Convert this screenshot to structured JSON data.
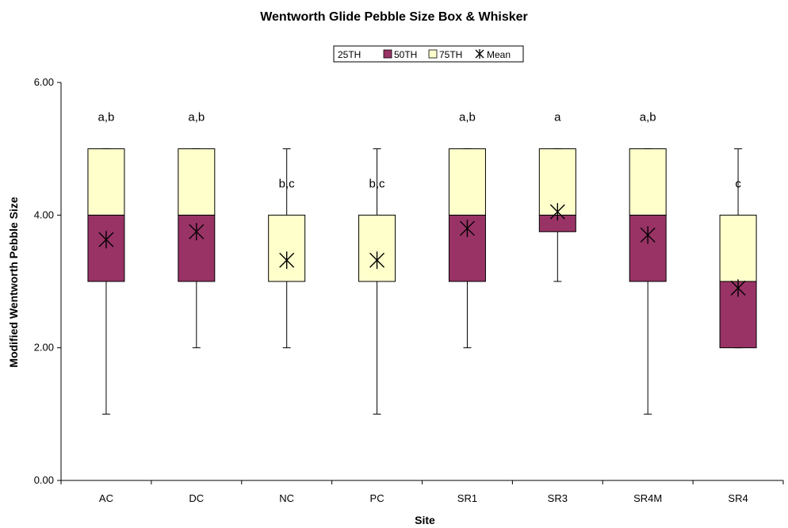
{
  "chart_data": {
    "type": "box",
    "title": "Wentworth Glide Pebble Size Box & Whisker",
    "xlabel": "Site",
    "ylabel": "Modified Wentworth Pebble Size",
    "ylim": [
      0,
      6
    ],
    "yticks": [
      "0.00",
      "2.00",
      "4.00",
      "6.00"
    ],
    "grid": false,
    "legend_position": "top-center",
    "legend": [
      {
        "name": "25TH",
        "color": "#ffffff"
      },
      {
        "name": "50TH",
        "color": "#993366"
      },
      {
        "name": "75TH",
        "color": "#ffffcc"
      },
      {
        "name": "Mean",
        "color": "#000000"
      }
    ],
    "categories": [
      "AC",
      "DC",
      "NC",
      "PC",
      "SR1",
      "SR3",
      "SR4M",
      "SR4"
    ],
    "boxes": [
      {
        "site": "AC",
        "min": 1,
        "q1": 3,
        "median": 4,
        "q3": 5,
        "max": 5,
        "mean": 3.63,
        "sig": "a,b"
      },
      {
        "site": "DC",
        "min": 2,
        "q1": 3,
        "median": 4,
        "q3": 5,
        "max": 5,
        "mean": 3.75,
        "sig": "a,b"
      },
      {
        "site": "NC",
        "min": 2,
        "q1": 3,
        "median": 3,
        "q3": 4,
        "max": 5,
        "mean": 3.32,
        "sig": "b,c"
      },
      {
        "site": "PC",
        "min": 1,
        "q1": 3,
        "median": 3,
        "q3": 4,
        "max": 5,
        "mean": 3.32,
        "sig": "b,c"
      },
      {
        "site": "SR1",
        "min": 2,
        "q1": 3,
        "median": 4,
        "q3": 5,
        "max": 5,
        "mean": 3.8,
        "sig": "a,b"
      },
      {
        "site": "SR3",
        "min": 3,
        "q1": 3.75,
        "median": 4,
        "q3": 5,
        "max": 5,
        "mean": 4.05,
        "sig": "a"
      },
      {
        "site": "SR4M",
        "min": 1,
        "q1": 3,
        "median": 4,
        "q3": 5,
        "max": 5,
        "mean": 3.7,
        "sig": "a,b"
      },
      {
        "site": "SR4",
        "min": 2,
        "q1": 2,
        "median": 3,
        "q3": 4,
        "max": 5,
        "mean": 2.9,
        "sig": "c"
      }
    ],
    "colors": {
      "lower_box": "#993366",
      "upper_box": "#ffffcc",
      "line": "#000000"
    }
  }
}
